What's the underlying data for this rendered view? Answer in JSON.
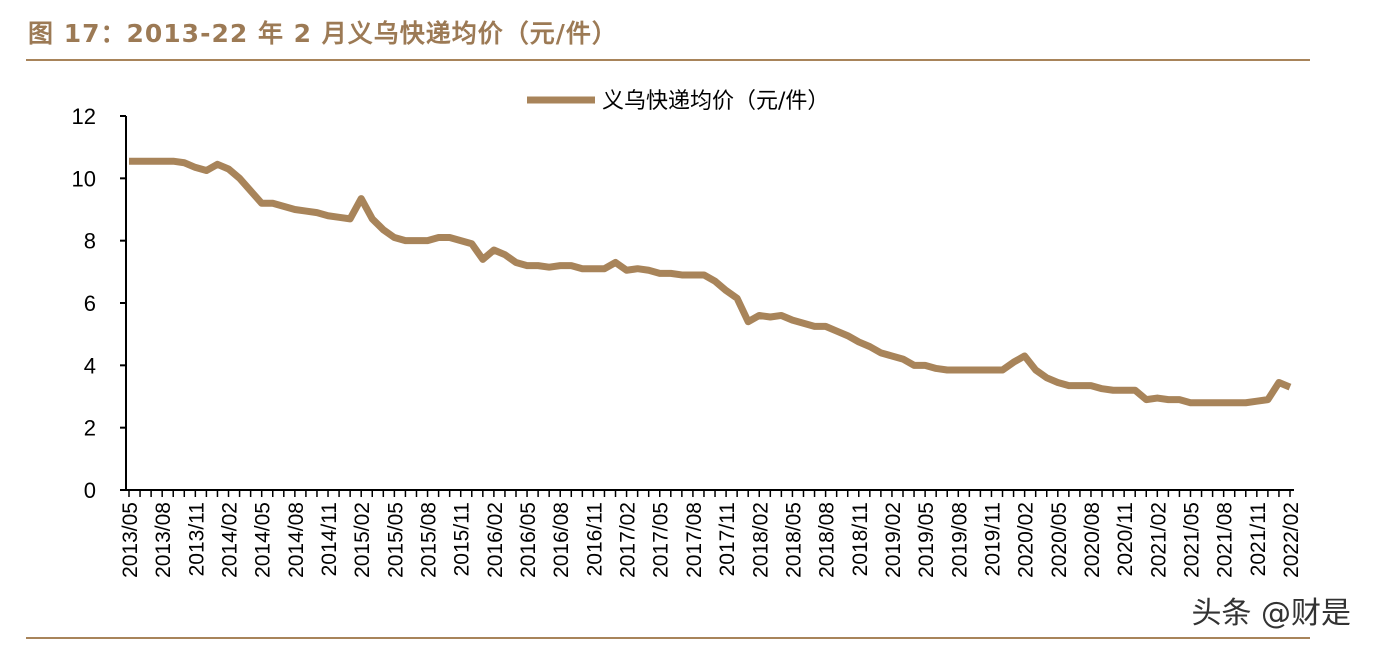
{
  "title": "图 17：2013-22 年 2 月义乌快递均价（元/件）",
  "watermark": "头条 @财是",
  "colors": {
    "line": "#a8845a",
    "title": "#9c7a55",
    "rule": "#a8845a"
  },
  "chart_data": {
    "type": "line",
    "title": "",
    "xlabel": "",
    "ylabel": "",
    "ylim": [
      0,
      12
    ],
    "yticks": [
      0,
      2,
      4,
      6,
      8,
      10,
      12
    ],
    "grid": false,
    "legend_position": "top-center",
    "x_start": "2013/05",
    "x_end": "2022/02",
    "x_frequency": "monthly",
    "xtick_labels": [
      "2013/05",
      "2013/08",
      "2013/11",
      "2014/02",
      "2014/05",
      "2014/08",
      "2014/11",
      "2015/02",
      "2015/05",
      "2015/08",
      "2015/11",
      "2016/02",
      "2016/05",
      "2016/08",
      "2016/11",
      "2017/02",
      "2017/05",
      "2017/08",
      "2017/11",
      "2018/02",
      "2018/05",
      "2018/08",
      "2018/11",
      "2019/02",
      "2019/05",
      "2019/08",
      "2019/11",
      "2020/02",
      "2020/05",
      "2020/08",
      "2020/11",
      "2021/02",
      "2021/05",
      "2021/08",
      "2021/11",
      "2022/02"
    ],
    "series": [
      {
        "name": "义乌快递均价（元/件）",
        "values": [
          10.55,
          10.55,
          10.55,
          10.55,
          10.55,
          10.5,
          10.35,
          10.25,
          10.45,
          10.3,
          10.0,
          9.6,
          9.2,
          9.2,
          9.1,
          9.0,
          8.95,
          8.9,
          8.8,
          8.75,
          8.7,
          9.35,
          8.7,
          8.35,
          8.1,
          8.0,
          8.0,
          8.0,
          8.1,
          8.1,
          8.0,
          7.9,
          7.4,
          7.7,
          7.55,
          7.3,
          7.2,
          7.2,
          7.15,
          7.2,
          7.2,
          7.1,
          7.1,
          7.1,
          7.3,
          7.05,
          7.1,
          7.05,
          6.95,
          6.95,
          6.9,
          6.9,
          6.9,
          6.7,
          6.4,
          6.15,
          5.4,
          5.6,
          5.55,
          5.6,
          5.45,
          5.35,
          5.25,
          5.25,
          5.1,
          4.95,
          4.75,
          4.6,
          4.4,
          4.3,
          4.2,
          4.0,
          4.0,
          3.9,
          3.85,
          3.85,
          3.85,
          3.85,
          3.85,
          3.85,
          4.1,
          4.3,
          3.85,
          3.6,
          3.45,
          3.35,
          3.35,
          3.35,
          3.25,
          3.2,
          3.2,
          3.2,
          2.9,
          2.95,
          2.9,
          2.9,
          2.8,
          2.8,
          2.8,
          2.8,
          2.8,
          2.8,
          2.85,
          2.9,
          3.45,
          3.3
        ]
      }
    ]
  }
}
